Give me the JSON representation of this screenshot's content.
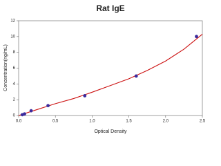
{
  "chart_data": {
    "type": "scatter",
    "title": "Rat IgE",
    "x_label": "Optical Density",
    "y_label": "Concentration(ng/mL)",
    "series": [
      {
        "style": "markers",
        "color": "#3b2c9e",
        "x": [
          0.05,
          0.08,
          0.17,
          0.4,
          0.9,
          1.6,
          2.42
        ],
        "values": [
          0.1,
          0.2,
          0.6,
          1.25,
          2.5,
          5,
          10
        ]
      },
      {
        "style": "line",
        "color": "#cc1111",
        "x": [
          0,
          0.25,
          0.5,
          0.75,
          1.0,
          1.25,
          1.5,
          1.75,
          2.0,
          2.25,
          2.5
        ],
        "values": [
          0,
          0.75,
          1.5,
          2.15,
          2.95,
          3.8,
          4.65,
          5.7,
          6.9,
          8.4,
          10.3
        ]
      }
    ],
    "xlim": [
      0,
      2.5
    ],
    "ylim": [
      0,
      12
    ],
    "xticks": [
      {
        "value": 0,
        "label": "0.0"
      },
      0.5,
      {
        "value": 1,
        "label": "1.0"
      },
      1.5,
      {
        "value": 2,
        "label": "2.0"
      },
      2.5
    ],
    "yticks": [
      0,
      2,
      4,
      6,
      8,
      10,
      12
    ]
  }
}
